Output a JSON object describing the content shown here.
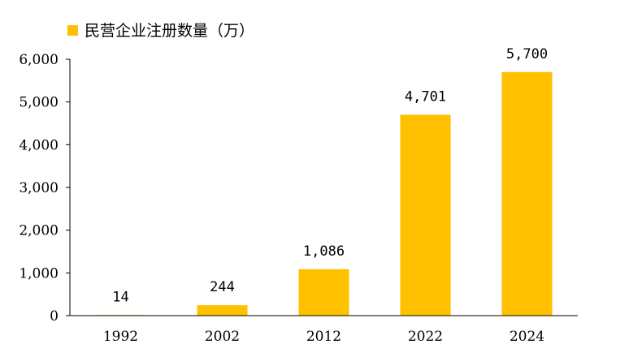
{
  "chart_data": {
    "type": "bar",
    "categories": [
      "1992",
      "2002",
      "2012",
      "2022",
      "2024"
    ],
    "series": [
      {
        "name": "民营企业注册数量（万）",
        "values": [
          14,
          244,
          1086,
          4701,
          5700
        ],
        "data_labels": [
          "14",
          "244",
          "1,086",
          "4,701",
          "5,700"
        ]
      }
    ],
    "ylim": [
      0,
      6000
    ],
    "yticks": [
      0,
      1000,
      2000,
      3000,
      4000,
      5000,
      6000
    ],
    "ytick_labels": [
      "0",
      "1,000",
      "2,000",
      "3,000",
      "4,000",
      "5,000",
      "6,000"
    ],
    "legend_position": "top-left",
    "grid": false,
    "bar_color": "#FFC000",
    "axis_color": "#000000"
  }
}
